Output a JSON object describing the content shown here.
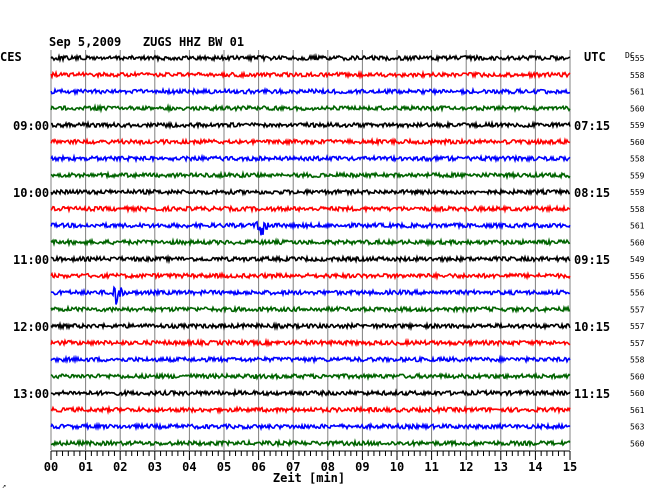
{
  "chart_data": {
    "type": "line",
    "title": "Sep 5,2009   ZUGS HHZ BW 01",
    "left_timezone": "CES",
    "right_timezone": "UTC",
    "dc_label": "DC",
    "xlabel": "Zeit [min]",
    "xlim": [
      0,
      15
    ],
    "x_ticks": [
      "00",
      "01",
      "02",
      "03",
      "04",
      "05",
      "06",
      "07",
      "08",
      "09",
      "10",
      "11",
      "12",
      "13",
      "14",
      "15"
    ],
    "left_hour_labels": [
      {
        "row": 4,
        "label": "09:00"
      },
      {
        "row": 8,
        "label": "10:00"
      },
      {
        "row": 12,
        "label": "11:00"
      },
      {
        "row": 16,
        "label": "12:00"
      },
      {
        "row": 20,
        "label": "13:00"
      }
    ],
    "right_hour_labels": [
      {
        "row": 4,
        "label": "07:15"
      },
      {
        "row": 8,
        "label": "08:15"
      },
      {
        "row": 12,
        "label": "09:15"
      },
      {
        "row": 16,
        "label": "10:15"
      },
      {
        "row": 20,
        "label": "11:15"
      }
    ],
    "row_colors": [
      "#000000",
      "#ff0000",
      "#0000ff",
      "#006400"
    ],
    "traces": [
      {
        "dc": "555"
      },
      {
        "dc": "558"
      },
      {
        "dc": "561"
      },
      {
        "dc": "560"
      },
      {
        "dc": "559"
      },
      {
        "dc": "560"
      },
      {
        "dc": "558"
      },
      {
        "dc": "559"
      },
      {
        "dc": "559"
      },
      {
        "dc": "558"
      },
      {
        "dc": "561",
        "event_min": 6.1
      },
      {
        "dc": "560"
      },
      {
        "dc": "549"
      },
      {
        "dc": "556"
      },
      {
        "dc": "556",
        "event_min": 1.9
      },
      {
        "dc": "557"
      },
      {
        "dc": "557"
      },
      {
        "dc": "557"
      },
      {
        "dc": "558"
      },
      {
        "dc": "560"
      },
      {
        "dc": "560"
      },
      {
        "dc": "561"
      },
      {
        "dc": "563"
      },
      {
        "dc": "560"
      }
    ],
    "grid": true,
    "grid_color": "#808080",
    "corner_mark": "↗"
  }
}
